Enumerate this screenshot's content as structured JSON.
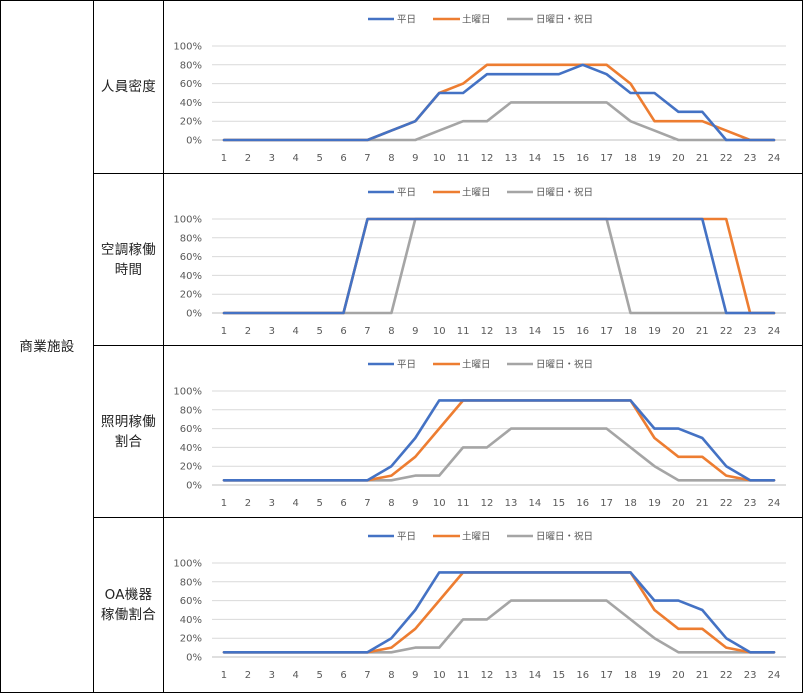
{
  "facility_label": "商業施設",
  "row_labels": [
    "人員密度",
    "空調稼働\n時間",
    "照明稼働\n割合",
    "OA機器\n稼働割合"
  ],
  "colors": {
    "weekday": "#4472C4",
    "saturday": "#ED7D31",
    "holiday": "#A5A5A5"
  },
  "chart_data": [
    {
      "type": "line",
      "categories": [
        "1",
        "2",
        "3",
        "4",
        "5",
        "6",
        "7",
        "8",
        "9",
        "10",
        "11",
        "12",
        "13",
        "14",
        "15",
        "16",
        "17",
        "18",
        "19",
        "20",
        "21",
        "22",
        "23",
        "24"
      ],
      "ylim": [
        0,
        100
      ],
      "yticks": [
        "0%",
        "20%",
        "40%",
        "60%",
        "80%",
        "100%"
      ],
      "grid": true,
      "legend": "top-center",
      "series": [
        {
          "name": "平日",
          "values": [
            0,
            0,
            0,
            0,
            0,
            0,
            0,
            10,
            20,
            50,
            50,
            70,
            70,
            70,
            70,
            80,
            70,
            50,
            50,
            30,
            30,
            0,
            0,
            0
          ]
        },
        {
          "name": "土曜日",
          "values": [
            0,
            0,
            0,
            0,
            0,
            0,
            0,
            10,
            20,
            50,
            60,
            80,
            80,
            80,
            80,
            80,
            80,
            60,
            20,
            20,
            20,
            10,
            0,
            0
          ]
        },
        {
          "name": "日曜日・祝日",
          "values": [
            0,
            0,
            0,
            0,
            0,
            0,
            0,
            0,
            0,
            10,
            20,
            20,
            40,
            40,
            40,
            40,
            40,
            20,
            10,
            0,
            0,
            0,
            0,
            0
          ]
        }
      ]
    },
    {
      "type": "line",
      "categories": [
        "1",
        "2",
        "3",
        "4",
        "5",
        "6",
        "7",
        "8",
        "9",
        "10",
        "11",
        "12",
        "13",
        "14",
        "15",
        "16",
        "17",
        "18",
        "19",
        "20",
        "21",
        "22",
        "23",
        "24"
      ],
      "ylim": [
        0,
        100
      ],
      "yticks": [
        "0%",
        "20%",
        "40%",
        "60%",
        "80%",
        "100%"
      ],
      "grid": true,
      "legend": "top-center",
      "series": [
        {
          "name": "平日",
          "values": [
            0,
            0,
            0,
            0,
            0,
            0,
            100,
            100,
            100,
            100,
            100,
            100,
            100,
            100,
            100,
            100,
            100,
            100,
            100,
            100,
            100,
            0,
            0,
            0
          ]
        },
        {
          "name": "土曜日",
          "values": [
            0,
            0,
            0,
            0,
            0,
            0,
            100,
            100,
            100,
            100,
            100,
            100,
            100,
            100,
            100,
            100,
            100,
            100,
            100,
            100,
            100,
            100,
            0,
            0
          ]
        },
        {
          "name": "日曜日・祝日",
          "values": [
            0,
            0,
            0,
            0,
            0,
            0,
            0,
            0,
            100,
            100,
            100,
            100,
            100,
            100,
            100,
            100,
            100,
            0,
            0,
            0,
            0,
            0,
            0,
            0
          ]
        }
      ]
    },
    {
      "type": "line",
      "categories": [
        "1",
        "2",
        "3",
        "4",
        "5",
        "6",
        "7",
        "8",
        "9",
        "10",
        "11",
        "12",
        "13",
        "14",
        "15",
        "16",
        "17",
        "18",
        "19",
        "20",
        "21",
        "22",
        "23",
        "24"
      ],
      "ylim": [
        0,
        100
      ],
      "yticks": [
        "0%",
        "20%",
        "40%",
        "60%",
        "80%",
        "100%"
      ],
      "grid": true,
      "legend": "top-center",
      "series": [
        {
          "name": "平日",
          "values": [
            5,
            5,
            5,
            5,
            5,
            5,
            5,
            20,
            50,
            90,
            90,
            90,
            90,
            90,
            90,
            90,
            90,
            90,
            60,
            60,
            50,
            20,
            5,
            5
          ]
        },
        {
          "name": "土曜日",
          "values": [
            5,
            5,
            5,
            5,
            5,
            5,
            5,
            10,
            30,
            60,
            90,
            90,
            90,
            90,
            90,
            90,
            90,
            90,
            50,
            30,
            30,
            10,
            5,
            5
          ]
        },
        {
          "name": "日曜日・祝日",
          "values": [
            5,
            5,
            5,
            5,
            5,
            5,
            5,
            5,
            10,
            10,
            40,
            40,
            60,
            60,
            60,
            60,
            60,
            40,
            20,
            5,
            5,
            5,
            5,
            5
          ]
        }
      ]
    },
    {
      "type": "line",
      "categories": [
        "1",
        "2",
        "3",
        "4",
        "5",
        "6",
        "7",
        "8",
        "9",
        "10",
        "11",
        "12",
        "13",
        "14",
        "15",
        "16",
        "17",
        "18",
        "19",
        "20",
        "21",
        "22",
        "23",
        "24"
      ],
      "ylim": [
        0,
        100
      ],
      "yticks": [
        "0%",
        "20%",
        "40%",
        "60%",
        "80%",
        "100%"
      ],
      "grid": true,
      "legend": "top-center",
      "series": [
        {
          "name": "平日",
          "values": [
            5,
            5,
            5,
            5,
            5,
            5,
            5,
            20,
            50,
            90,
            90,
            90,
            90,
            90,
            90,
            90,
            90,
            90,
            60,
            60,
            50,
            20,
            5,
            5
          ]
        },
        {
          "name": "土曜日",
          "values": [
            5,
            5,
            5,
            5,
            5,
            5,
            5,
            10,
            30,
            60,
            90,
            90,
            90,
            90,
            90,
            90,
            90,
            90,
            50,
            30,
            30,
            10,
            5,
            5
          ]
        },
        {
          "name": "日曜日・祝日",
          "values": [
            5,
            5,
            5,
            5,
            5,
            5,
            5,
            5,
            10,
            10,
            40,
            40,
            60,
            60,
            60,
            60,
            60,
            40,
            20,
            5,
            5,
            5,
            5,
            5
          ]
        }
      ]
    }
  ]
}
